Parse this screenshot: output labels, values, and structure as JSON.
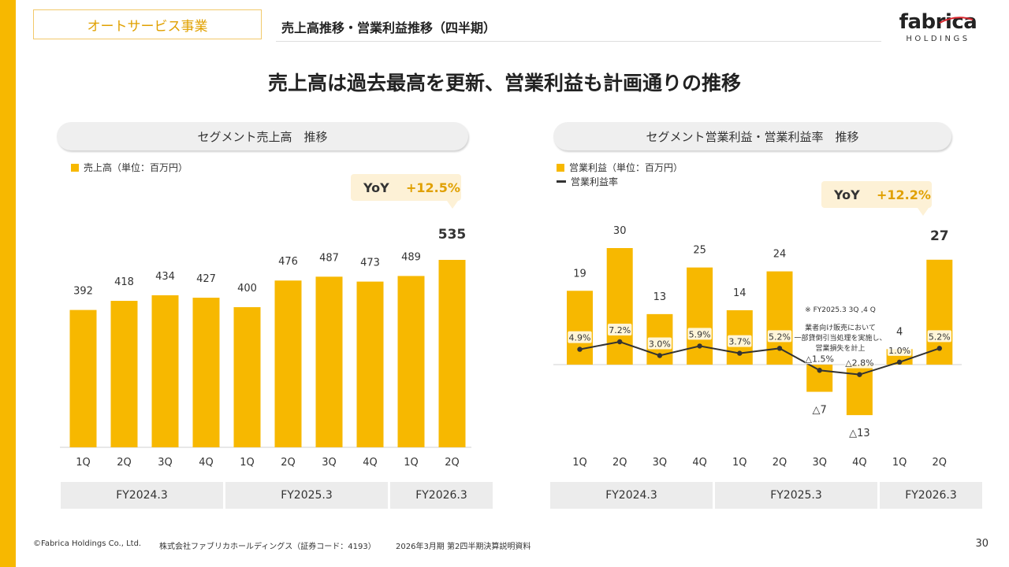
{
  "header": {
    "segment": "オートサービス事業",
    "title": "売上高推移・営業利益推移（四半期）",
    "logo_main": "fabrica",
    "logo_sub": "HOLDINGS",
    "headline": "売上高は過去最高を更新、営業利益も計画通りの推移"
  },
  "colors": {
    "accent": "#f7b800",
    "accent_text": "#e0a000",
    "line": "#333333",
    "cell_bg": "#ececec"
  },
  "left_panel": {
    "title": "セグメント売上高　推移",
    "legend": "売上高（単位：百万円）",
    "yoy_label": "YoY",
    "yoy_value": "+12.5%",
    "fiscal_years": [
      "FY2024.3",
      "FY2025.3",
      "FY2026.3"
    ]
  },
  "right_panel": {
    "title": "セグメント営業利益・営業利益率　推移",
    "legend_bar": "営業利益（単位：百万円）",
    "legend_line": "営業利益率",
    "yoy_label": "YoY",
    "yoy_value": "+12.2%",
    "fiscal_years": [
      "FY2024.3",
      "FY2025.3",
      "FY2026.3"
    ],
    "note": [
      "※ FY2025.3 3Q ,4 Q",
      "業者向け販売において",
      "一部貸倒引当処理を実施し、",
      "営業損失を計上"
    ]
  },
  "chart_data": [
    {
      "type": "bar",
      "title": "セグメント売上高　推移",
      "unit": "百万円",
      "categories": [
        "1Q",
        "2Q",
        "3Q",
        "4Q",
        "1Q",
        "2Q",
        "3Q",
        "4Q",
        "1Q",
        "2Q"
      ],
      "groups": [
        "FY2024.3",
        "FY2024.3",
        "FY2024.3",
        "FY2024.3",
        "FY2025.3",
        "FY2025.3",
        "FY2025.3",
        "FY2025.3",
        "FY2026.3",
        "FY2026.3"
      ],
      "values": [
        392,
        418,
        434,
        427,
        400,
        476,
        487,
        473,
        489,
        535
      ],
      "labels": [
        "392",
        "418",
        "434",
        "427",
        "400",
        "476",
        "487",
        "473",
        "489",
        "535"
      ],
      "ylim": [
        0,
        535
      ]
    },
    {
      "type": "bar+line",
      "title": "セグメント営業利益・営業利益率　推移",
      "unit": "百万円",
      "categories": [
        "1Q",
        "2Q",
        "3Q",
        "4Q",
        "1Q",
        "2Q",
        "3Q",
        "4Q",
        "1Q",
        "2Q"
      ],
      "groups": [
        "FY2024.3",
        "FY2024.3",
        "FY2024.3",
        "FY2024.3",
        "FY2025.3",
        "FY2025.3",
        "FY2025.3",
        "FY2025.3",
        "FY2026.3",
        "FY2026.3"
      ],
      "series": [
        {
          "name": "営業利益",
          "kind": "bar",
          "values": [
            19,
            30,
            13,
            25,
            14,
            24,
            -7,
            -13,
            4,
            27
          ],
          "labels": [
            "19",
            "30",
            "13",
            "25",
            "14",
            "24",
            "△7",
            "△13",
            "4",
            "27"
          ]
        },
        {
          "name": "営業利益率",
          "kind": "line",
          "values": [
            4.9,
            7.2,
            3.0,
            5.9,
            3.7,
            5.2,
            -1.5,
            -2.8,
            1.0,
            5.2
          ],
          "labels": [
            "4.9%",
            "7.2%",
            "3.0%",
            "5.9%",
            "3.7%",
            "5.2%",
            "△1.5%",
            "△2.8%",
            "1.0%",
            "5.2%"
          ]
        }
      ]
    }
  ],
  "footer": {
    "copyright": "©Fabrica Holdings Co., Ltd.",
    "company": "株式会社ファブリカホールディングス（証券コード：4193）",
    "doc": "2026年3月期 第2四半期決算説明資料",
    "page": "30"
  }
}
